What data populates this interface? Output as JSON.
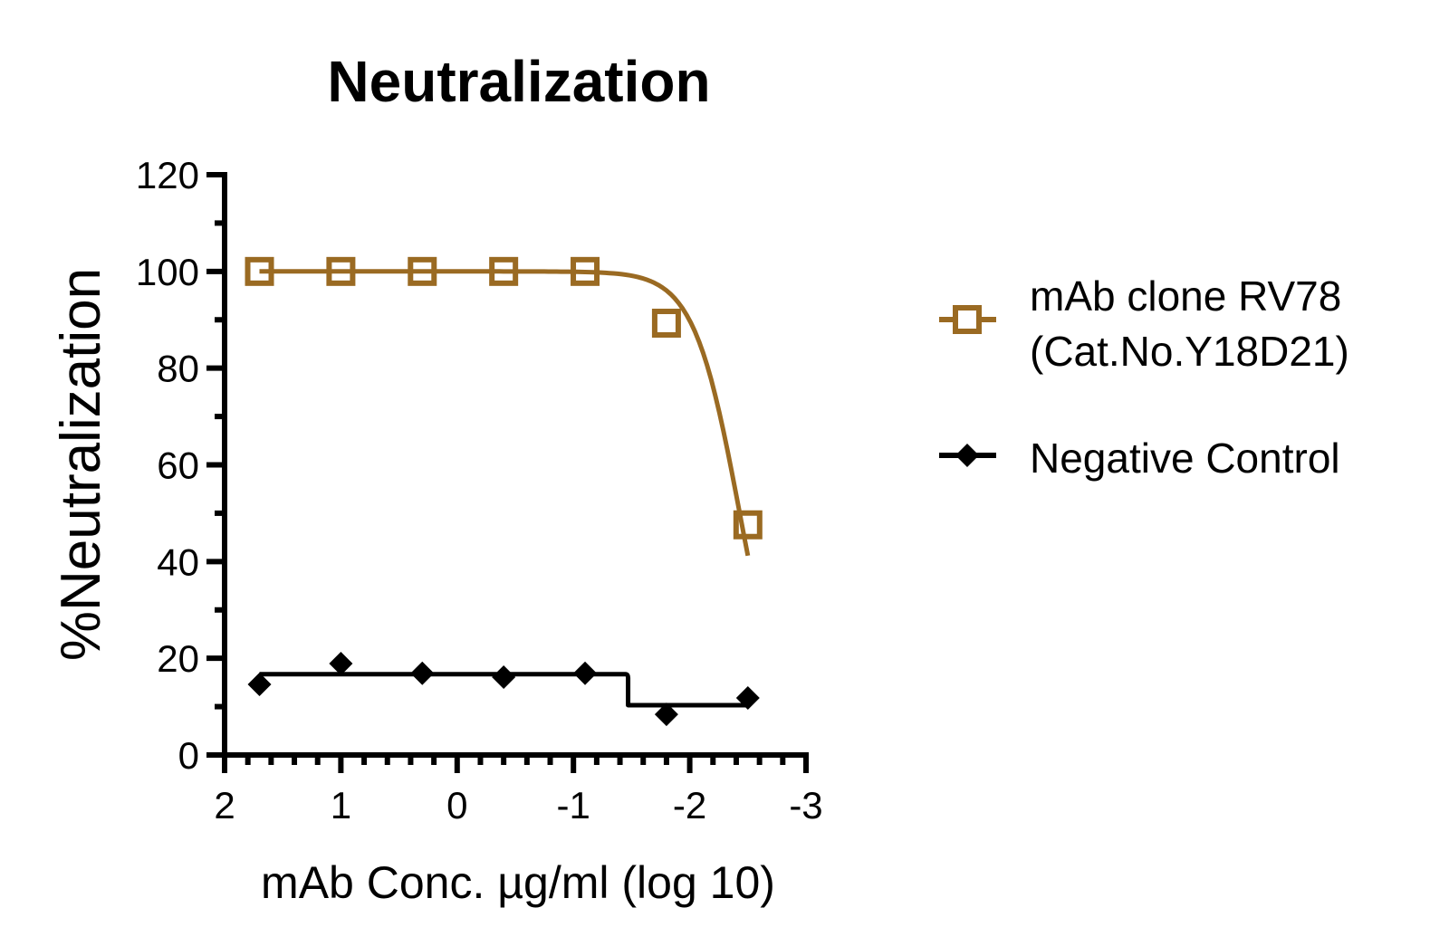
{
  "chart_data": {
    "type": "scatter",
    "title": "Neutralization",
    "xlabel": "mAb Conc. µg/ml (log 10)",
    "ylabel": "%Neutralization",
    "xlim": [
      2,
      -3
    ],
    "ylim": [
      0,
      120
    ],
    "x_reversed": true,
    "x_ticks": [
      2,
      1,
      0,
      -1,
      -2,
      -3
    ],
    "x_tick_labels": [
      "2",
      "1",
      "0",
      "-1",
      "-2",
      "-3"
    ],
    "x_minor_step": 0.2,
    "y_ticks": [
      0,
      20,
      40,
      60,
      80,
      100,
      120
    ],
    "y_tick_labels": [
      "0",
      "20",
      "40",
      "60",
      "80",
      "100",
      "120"
    ],
    "y_minor_step": 10,
    "grid": false,
    "legend_position": "right",
    "series": [
      {
        "name": "mAb clone RV78 (Cat.No.Y18D21)",
        "legend_lines": [
          "mAb clone RV78",
          "(Cat.No.Y18D21)"
        ],
        "color": "#9a6a22",
        "marker": "open-square",
        "fit": "sigmoidal",
        "x": [
          1.7,
          1.0,
          0.3,
          -0.4,
          -1.1,
          -1.8,
          -2.5
        ],
        "y": [
          100,
          100,
          100,
          100,
          100,
          89.3,
          47.6
        ],
        "fit_params": {
          "top": 100,
          "bottom": 0,
          "log_ec50": -2.43,
          "hill_slope": 2.2
        }
      },
      {
        "name": "Negative Control",
        "legend_lines": [
          "Negative Control"
        ],
        "color": "#000000",
        "marker": "filled-diamond",
        "fit": "step",
        "x": [
          1.7,
          1.0,
          0.3,
          -0.4,
          -1.1,
          -1.8,
          -2.5
        ],
        "y": [
          14.6,
          18.9,
          16.9,
          16.1,
          16.9,
          8.4,
          11.8
        ],
        "fit_params": {
          "top": 16.7,
          "bottom": 10.3,
          "step_x": -1.47
        }
      }
    ]
  }
}
